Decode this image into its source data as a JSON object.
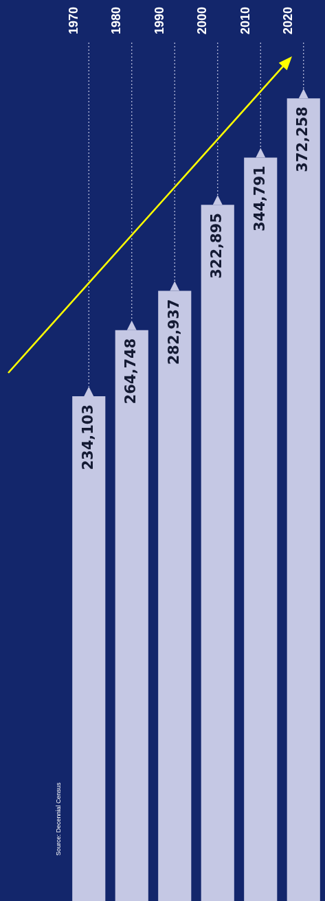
{
  "chart_data": {
    "type": "bar",
    "categories": [
      "1970",
      "1980",
      "1990",
      "2000",
      "2010",
      "2020"
    ],
    "values": [
      234103,
      264748,
      282937,
      322895,
      344791,
      372258
    ],
    "value_labels": [
      "234,103",
      "264,748",
      "282,937",
      "322,895",
      "344,791",
      "372,258"
    ],
    "color": "#c5c8e4",
    "grid": false,
    "legend": false,
    "tick_labels": "x",
    "annotations": [
      "Source: Decennial Census"
    ]
  }
}
